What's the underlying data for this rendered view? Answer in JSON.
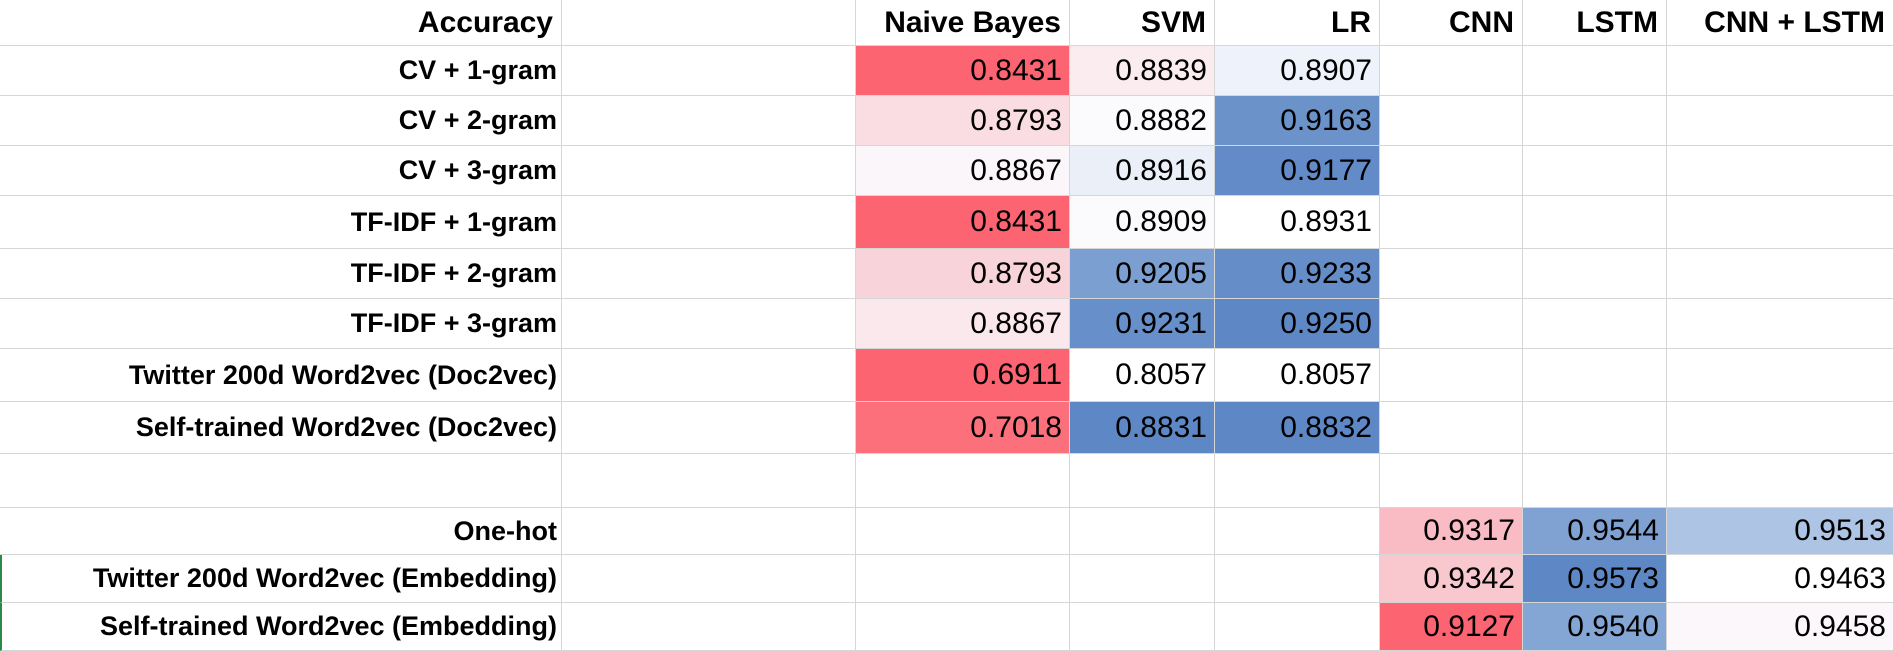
{
  "header": {
    "corner_label": "Accuracy",
    "columns": [
      "Naive Bayes",
      "SVM",
      "LR",
      "CNN",
      "LSTM",
      "CNN + LSTM"
    ]
  },
  "rows": [
    {
      "label": "CV + 1-gram",
      "cells": [
        {
          "value": "0.8431",
          "bg": "#fb6470"
        },
        {
          "value": "0.8839",
          "bg": "#fbecef"
        },
        {
          "value": "0.8907",
          "bg": "#eef2fa"
        },
        {
          "value": "",
          "bg": ""
        },
        {
          "value": "",
          "bg": ""
        },
        {
          "value": "",
          "bg": ""
        }
      ]
    },
    {
      "label": "CV + 2-gram",
      "cells": [
        {
          "value": "0.8793",
          "bg": "#fadde2"
        },
        {
          "value": "0.8882",
          "bg": "#fbfafd"
        },
        {
          "value": "0.9163",
          "bg": "#6b93ca"
        },
        {
          "value": "",
          "bg": ""
        },
        {
          "value": "",
          "bg": ""
        },
        {
          "value": "",
          "bg": ""
        }
      ]
    },
    {
      "label": "CV + 3-gram",
      "cells": [
        {
          "value": "0.8867",
          "bg": "#fbf6f9"
        },
        {
          "value": "0.8916",
          "bg": "#ebeff8"
        },
        {
          "value": "0.9177",
          "bg": "#628bc7"
        },
        {
          "value": "",
          "bg": ""
        },
        {
          "value": "",
          "bg": ""
        },
        {
          "value": "",
          "bg": ""
        }
      ]
    },
    {
      "label": "TF-IDF + 1-gram",
      "cells": [
        {
          "value": "0.8431",
          "bg": "#fb6470"
        },
        {
          "value": "0.8909",
          "bg": "#fbfafd"
        },
        {
          "value": "0.8931",
          "bg": "#ffffff"
        },
        {
          "value": "",
          "bg": ""
        },
        {
          "value": "",
          "bg": ""
        },
        {
          "value": "",
          "bg": ""
        }
      ]
    },
    {
      "label": "TF-IDF + 2-gram",
      "cells": [
        {
          "value": "0.8793",
          "bg": "#f9d3da"
        },
        {
          "value": "0.9205",
          "bg": "#7b9fd1"
        },
        {
          "value": "0.9233",
          "bg": "#658ec9"
        },
        {
          "value": "",
          "bg": ""
        },
        {
          "value": "",
          "bg": ""
        },
        {
          "value": "",
          "bg": ""
        }
      ]
    },
    {
      "label": "TF-IDF + 3-gram",
      "cells": [
        {
          "value": "0.8867",
          "bg": "#fbe8ec"
        },
        {
          "value": "0.9231",
          "bg": "#678fca"
        },
        {
          "value": "0.9250",
          "bg": "#5d88c5"
        },
        {
          "value": "",
          "bg": ""
        },
        {
          "value": "",
          "bg": ""
        },
        {
          "value": "",
          "bg": ""
        }
      ]
    },
    {
      "label": "Twitter 200d Word2vec (Doc2vec)",
      "cells": [
        {
          "value": "0.6911",
          "bg": "#fb6470"
        },
        {
          "value": "0.8057",
          "bg": "#ffffff"
        },
        {
          "value": "0.8057",
          "bg": "#ffffff"
        },
        {
          "value": "",
          "bg": ""
        },
        {
          "value": "",
          "bg": ""
        },
        {
          "value": "",
          "bg": ""
        }
      ]
    },
    {
      "label": "Self-trained Word2vec (Doc2vec)",
      "cells": [
        {
          "value": "0.7018",
          "bg": "#fb707b"
        },
        {
          "value": "0.8831",
          "bg": "#5d88c5"
        },
        {
          "value": "0.8832",
          "bg": "#5d88c5"
        },
        {
          "value": "",
          "bg": ""
        },
        {
          "value": "",
          "bg": ""
        },
        {
          "value": "",
          "bg": ""
        }
      ]
    },
    {
      "label": "",
      "cells": [
        {
          "value": "",
          "bg": ""
        },
        {
          "value": "",
          "bg": ""
        },
        {
          "value": "",
          "bg": ""
        },
        {
          "value": "",
          "bg": ""
        },
        {
          "value": "",
          "bg": ""
        },
        {
          "value": "",
          "bg": ""
        }
      ]
    },
    {
      "label": "One-hot",
      "cells": [
        {
          "value": "",
          "bg": ""
        },
        {
          "value": "",
          "bg": ""
        },
        {
          "value": "",
          "bg": ""
        },
        {
          "value": "0.9317",
          "bg": "#f9bcc5"
        },
        {
          "value": "0.9544",
          "bg": "#7fa2d3"
        },
        {
          "value": "0.9513",
          "bg": "#adc4e5"
        }
      ]
    },
    {
      "label": "Twitter 200d Word2vec (Embedding)",
      "cells": [
        {
          "value": "",
          "bg": ""
        },
        {
          "value": "",
          "bg": ""
        },
        {
          "value": "",
          "bg": ""
        },
        {
          "value": "0.9342",
          "bg": "#f9c8cf"
        },
        {
          "value": "0.9573",
          "bg": "#5d88c5"
        },
        {
          "value": "0.9463",
          "bg": "#ffffff"
        }
      ]
    },
    {
      "label": "Self-trained Word2vec (Embedding)",
      "cells": [
        {
          "value": "",
          "bg": ""
        },
        {
          "value": "",
          "bg": ""
        },
        {
          "value": "",
          "bg": ""
        },
        {
          "value": "0.9127",
          "bg": "#fb6470"
        },
        {
          "value": "0.9540",
          "bg": "#84a6d5"
        },
        {
          "value": "0.9458",
          "bg": "#fbf7fa"
        }
      ]
    }
  ]
}
